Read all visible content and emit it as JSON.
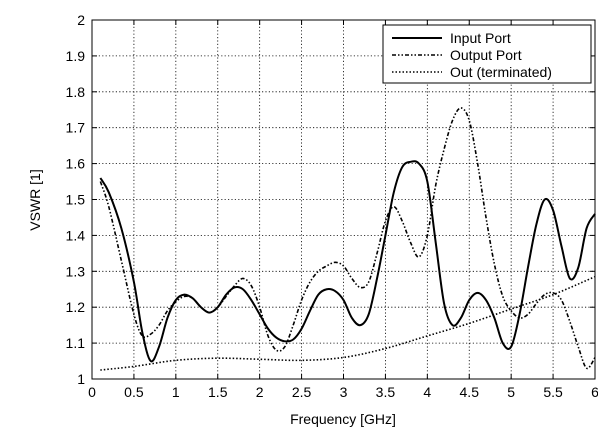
{
  "chart_data": {
    "type": "line",
    "title": "",
    "xlabel": "Frequency [GHz]",
    "ylabel": "VSWR [1]",
    "xlim": [
      0,
      6
    ],
    "ylim": [
      1,
      2
    ],
    "xticks": [
      "0",
      "0.5",
      "1",
      "1.5",
      "2",
      "2.5",
      "3",
      "3.5",
      "4",
      "4.5",
      "5",
      "5.5",
      "6"
    ],
    "yticks": [
      "1",
      "1.1",
      "1.2",
      "1.3",
      "1.4",
      "1.5",
      "1.6",
      "1.7",
      "1.8",
      "1.9",
      "2"
    ],
    "grid": true,
    "legend_position": "top-right",
    "series": [
      {
        "name": "Input Port",
        "style": "solid",
        "color": "#000000",
        "x": [
          0.1,
          0.2,
          0.35,
          0.5,
          0.6,
          0.7,
          0.8,
          0.9,
          1.0,
          1.1,
          1.2,
          1.3,
          1.4,
          1.5,
          1.6,
          1.7,
          1.8,
          1.9,
          2.0,
          2.1,
          2.2,
          2.3,
          2.4,
          2.5,
          2.6,
          2.7,
          2.8,
          2.9,
          3.0,
          3.1,
          3.2,
          3.3,
          3.4,
          3.5,
          3.6,
          3.7,
          3.8,
          3.9,
          4.0,
          4.1,
          4.2,
          4.3,
          4.4,
          4.5,
          4.6,
          4.7,
          4.8,
          4.9,
          5.0,
          5.1,
          5.2,
          5.3,
          5.4,
          5.5,
          5.6,
          5.7,
          5.8,
          5.9,
          6.0
        ],
        "y": [
          1.56,
          1.52,
          1.42,
          1.27,
          1.13,
          1.05,
          1.09,
          1.17,
          1.22,
          1.235,
          1.225,
          1.2,
          1.185,
          1.2,
          1.235,
          1.255,
          1.25,
          1.22,
          1.18,
          1.14,
          1.115,
          1.105,
          1.11,
          1.14,
          1.19,
          1.235,
          1.25,
          1.245,
          1.22,
          1.17,
          1.15,
          1.18,
          1.28,
          1.4,
          1.52,
          1.59,
          1.605,
          1.6,
          1.55,
          1.38,
          1.21,
          1.15,
          1.17,
          1.22,
          1.24,
          1.22,
          1.17,
          1.1,
          1.09,
          1.18,
          1.31,
          1.43,
          1.5,
          1.47,
          1.37,
          1.28,
          1.31,
          1.42,
          1.46
        ]
      },
      {
        "name": "Output Port",
        "style": "dash-dot-dot",
        "color": "#000000",
        "x": [
          0.1,
          0.2,
          0.35,
          0.5,
          0.6,
          0.7,
          0.8,
          0.9,
          1.0,
          1.1,
          1.2,
          1.3,
          1.4,
          1.5,
          1.6,
          1.7,
          1.8,
          1.9,
          2.0,
          2.1,
          2.2,
          2.3,
          2.4,
          2.5,
          2.6,
          2.7,
          2.8,
          2.9,
          3.0,
          3.1,
          3.2,
          3.3,
          3.4,
          3.5,
          3.6,
          3.7,
          3.8,
          3.9,
          4.0,
          4.1,
          4.2,
          4.3,
          4.4,
          4.5,
          4.6,
          4.7,
          4.8,
          4.9,
          5.0,
          5.1,
          5.2,
          5.3,
          5.4,
          5.5,
          5.6,
          5.7,
          5.8,
          5.9,
          6.0
        ],
        "y": [
          1.55,
          1.48,
          1.33,
          1.18,
          1.12,
          1.125,
          1.15,
          1.19,
          1.215,
          1.23,
          1.225,
          1.2,
          1.185,
          1.2,
          1.23,
          1.26,
          1.28,
          1.26,
          1.2,
          1.12,
          1.08,
          1.09,
          1.15,
          1.22,
          1.27,
          1.3,
          1.315,
          1.325,
          1.315,
          1.28,
          1.255,
          1.27,
          1.35,
          1.44,
          1.48,
          1.44,
          1.38,
          1.34,
          1.4,
          1.54,
          1.64,
          1.72,
          1.755,
          1.72,
          1.6,
          1.45,
          1.32,
          1.23,
          1.19,
          1.17,
          1.18,
          1.21,
          1.235,
          1.24,
          1.22,
          1.16,
          1.09,
          1.03,
          1.06
        ]
      },
      {
        "name": "Out (terminated)",
        "style": "dotted",
        "color": "#000000",
        "x": [
          0.1,
          0.5,
          1.0,
          1.5,
          2.0,
          2.5,
          3.0,
          3.5,
          4.0,
          4.5,
          5.0,
          5.5,
          6.0
        ],
        "y": [
          1.025,
          1.035,
          1.052,
          1.058,
          1.055,
          1.052,
          1.06,
          1.085,
          1.12,
          1.155,
          1.195,
          1.235,
          1.285
        ]
      }
    ]
  }
}
